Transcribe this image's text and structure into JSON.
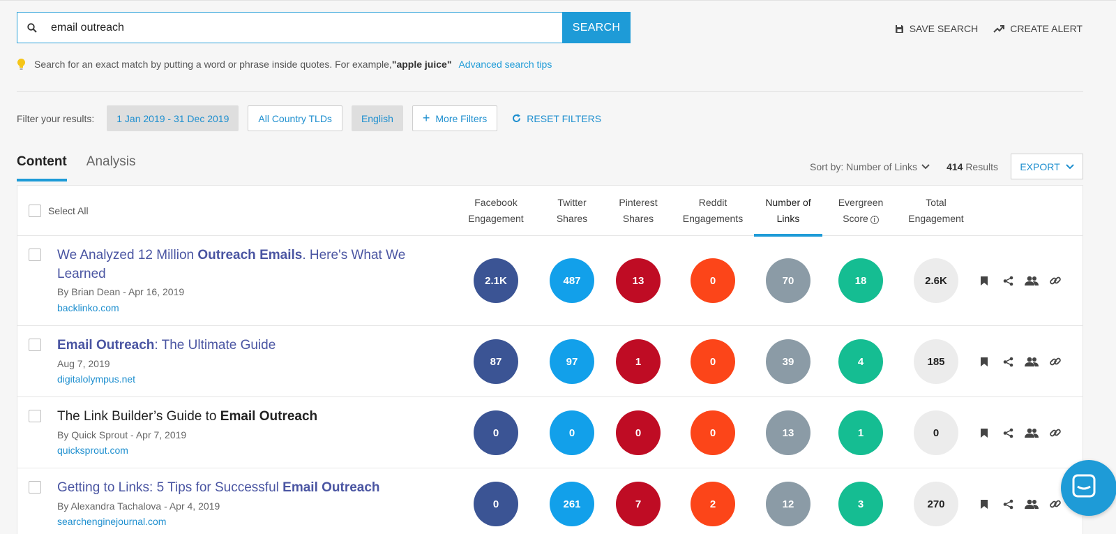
{
  "search": {
    "value": "email outreach",
    "button_label": "SEARCH"
  },
  "top_actions": {
    "save_search": "SAVE SEARCH",
    "create_alert": "CREATE ALERT"
  },
  "tip": {
    "text_before": "Search for an exact match by putting a word or phrase inside quotes. For example, ",
    "example": "\"apple juice\"",
    "advanced_link": "Advanced search tips"
  },
  "filters": {
    "label": "Filter your results:",
    "date_range": "1 Jan 2019 - 31 Dec 2019",
    "country": "All Country TLDs",
    "language": "English",
    "more_filters": "More Filters",
    "reset": "RESET FILTERS"
  },
  "tabs": {
    "content": "Content",
    "analysis": "Analysis"
  },
  "sort": {
    "label": "Sort by: Number of Links",
    "results_count": "414",
    "results_label": "Results",
    "export": "EXPORT"
  },
  "table": {
    "select_all": "Select All",
    "columns": {
      "facebook_1": "Facebook",
      "facebook_2": "Engagement",
      "twitter_1": "Twitter",
      "twitter_2": "Shares",
      "pinterest_1": "Pinterest",
      "pinterest_2": "Shares",
      "reddit_1": "Reddit",
      "reddit_2": "Engagements",
      "links_1": "Number of",
      "links_2": "Links",
      "evergreen_1": "Evergreen",
      "evergreen_2": "Score",
      "total_1": "Total",
      "total_2": "Engagement"
    },
    "rows": [
      {
        "title_pre": "We Analyzed 12 Million ",
        "title_bold": "Outreach Emails",
        "title_post": ". Here's What We Learned",
        "meta": "By Brian Dean - Apr 16, 2019",
        "domain": "backlinko.com",
        "facebook": "2.1K",
        "twitter": "487",
        "pinterest": "13",
        "reddit": "0",
        "links": "70",
        "evergreen": "18",
        "total": "2.6K"
      },
      {
        "title_pre": "",
        "title_bold": "Email Outreach",
        "title_post": ": The Ultimate Guide",
        "meta": "Aug 7, 2019",
        "domain": "digitalolympus.net",
        "facebook": "87",
        "twitter": "97",
        "pinterest": "1",
        "reddit": "0",
        "links": "39",
        "evergreen": "4",
        "total": "185"
      },
      {
        "title_pre": "The Link Builder’s Guide to ",
        "title_bold": "Email Outreach",
        "title_post": "",
        "meta": "By Quick Sprout - Apr 7, 2019",
        "domain": "quicksprout.com",
        "facebook": "0",
        "twitter": "0",
        "pinterest": "0",
        "reddit": "0",
        "links": "13",
        "evergreen": "1",
        "total": "0"
      },
      {
        "title_pre": "Getting to Links: 5 Tips for Successful ",
        "title_bold": "Email Outreach",
        "title_post": "",
        "meta": "By Alexandra Tachalova - Apr 4, 2019",
        "domain": "searchenginejournal.com",
        "facebook": "0",
        "twitter": "261",
        "pinterest": "7",
        "reddit": "2",
        "links": "12",
        "evergreen": "3",
        "total": "270"
      }
    ]
  },
  "colors": {
    "accent": "#1e9bd7",
    "facebook": "#3b5494",
    "twitter": "#12a0ea",
    "pinterest": "#bf0c24",
    "reddit": "#fc4519",
    "links": "#8b9ba6",
    "evergreen": "#15bd92",
    "total": "#ececec"
  },
  "icons": [
    "search-icon",
    "save-icon",
    "trending-up-icon",
    "lightbulb-icon",
    "plus-icon",
    "refresh-icon",
    "chevron-down-icon",
    "info-icon",
    "bookmark-icon",
    "share-icon",
    "users-icon",
    "link-icon",
    "chat-icon"
  ]
}
